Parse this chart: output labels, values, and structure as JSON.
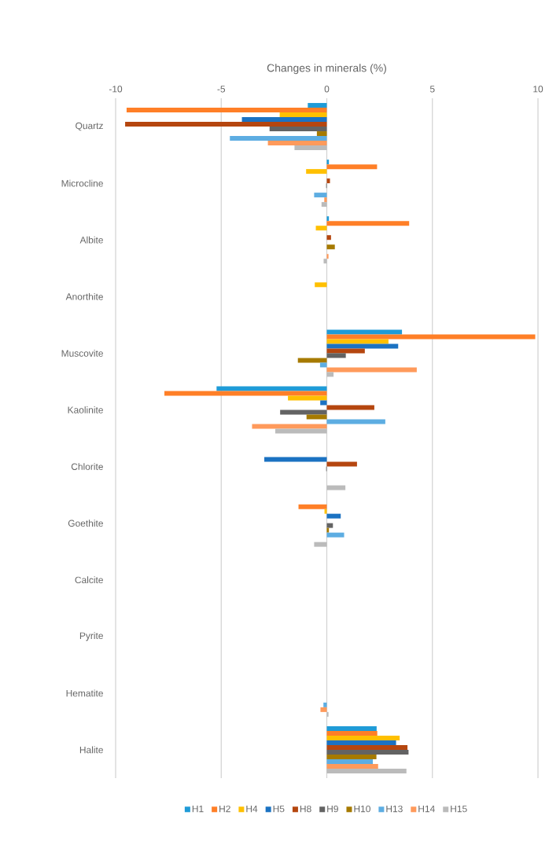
{
  "chart_data": {
    "type": "bar",
    "orientation": "horizontal",
    "xlabel": "Changes in minerals (%)",
    "categories": [
      "Quartz",
      "Microcline",
      "Albite",
      "Anorthite",
      "Muscovite",
      "Kaolinite",
      "Chlorite",
      "Goethite",
      "Calcite",
      "Pyrite",
      "Hematite",
      "Halite"
    ],
    "series": [
      {
        "name": "H1",
        "color": "#1f9bd7",
        "values": [
          -0.9,
          0.1,
          0.1,
          0,
          3.56,
          -5.22,
          0,
          0,
          0,
          0,
          0,
          2.36
        ]
      },
      {
        "name": "H2",
        "color": "#ff7f27",
        "values": [
          -9.48,
          2.38,
          3.9,
          0,
          9.87,
          -7.69,
          0,
          -1.34,
          0,
          0,
          0,
          2.39
        ]
      },
      {
        "name": "H4",
        "color": "#ffc000",
        "values": [
          -2.23,
          -0.98,
          -0.52,
          -0.57,
          2.92,
          -1.84,
          0,
          -0.11,
          0,
          0,
          0,
          3.45
        ]
      },
      {
        "name": "H5",
        "color": "#1b72c2",
        "values": [
          -4.02,
          null,
          0,
          0,
          3.38,
          -0.31,
          -2.96,
          0.66,
          0,
          0,
          0,
          3.28
        ]
      },
      {
        "name": "H8",
        "color": "#b5460f",
        "values": [
          -9.55,
          0.15,
          0.2,
          0,
          1.8,
          2.25,
          1.43,
          0,
          0,
          0,
          0,
          3.82
        ]
      },
      {
        "name": "H9",
        "color": "#636363",
        "values": [
          -2.71,
          -0.03,
          0,
          0,
          0.9,
          -2.21,
          -0.03,
          0.29,
          0,
          0,
          0,
          3.87
        ]
      },
      {
        "name": "H10",
        "color": "#a67a00",
        "values": [
          -0.47,
          0,
          0.38,
          0,
          -1.37,
          -0.96,
          0,
          0.1,
          0,
          0,
          0,
          2.35
        ]
      },
      {
        "name": "H13",
        "color": "#5dade2",
        "values": [
          -4.59,
          -0.6,
          0,
          0,
          -0.32,
          2.77,
          0,
          0.82,
          0,
          0,
          -0.16,
          2.18
        ]
      },
      {
        "name": "H14",
        "color": "#ff9a5b",
        "values": [
          -2.79,
          -0.12,
          0.08,
          0,
          4.26,
          -3.54,
          0,
          0,
          0,
          0,
          -0.3,
          2.43
        ]
      },
      {
        "name": "H15",
        "color": "#bbbbbb",
        "values": [
          -1.53,
          -0.25,
          -0.15,
          0,
          0.32,
          -2.44,
          0.88,
          -0.6,
          0,
          0,
          0.08,
          3.77
        ]
      }
    ],
    "xlim": [
      -10,
      10
    ],
    "xticks": [
      -10,
      -5,
      0,
      5,
      10
    ],
    "grid": "x",
    "legend": "bottom"
  }
}
